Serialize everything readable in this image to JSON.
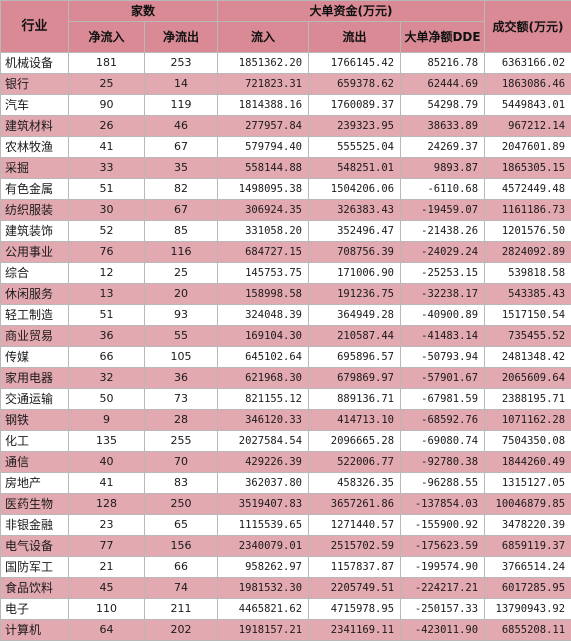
{
  "header": {
    "industry": "行业",
    "count_group": "家数",
    "net_inflow_count": "净流入",
    "net_outflow_count": "净流出",
    "big_order_group": "大单资金(万元)",
    "inflow": "流入",
    "outflow": "流出",
    "big_net_dde": "大单净额DDE",
    "turnover": "成交额(万元)"
  },
  "rows": [
    {
      "name": "机械设备",
      "in_n": "181",
      "out_n": "253",
      "inflow": "1851362.20",
      "outflow": "1766145.42",
      "net": "85216.78",
      "turnover": "6363166.02"
    },
    {
      "name": "银行",
      "in_n": "25",
      "out_n": "14",
      "inflow": "721823.31",
      "outflow": "659378.62",
      "net": "62444.69",
      "turnover": "1863086.46"
    },
    {
      "name": "汽车",
      "in_n": "90",
      "out_n": "119",
      "inflow": "1814388.16",
      "outflow": "1760089.37",
      "net": "54298.79",
      "turnover": "5449843.01"
    },
    {
      "name": "建筑材料",
      "in_n": "26",
      "out_n": "46",
      "inflow": "277957.84",
      "outflow": "239323.95",
      "net": "38633.89",
      "turnover": "967212.14"
    },
    {
      "name": "农林牧渔",
      "in_n": "41",
      "out_n": "67",
      "inflow": "579794.40",
      "outflow": "555525.04",
      "net": "24269.37",
      "turnover": "2047601.89"
    },
    {
      "name": "采掘",
      "in_n": "33",
      "out_n": "35",
      "inflow": "558144.88",
      "outflow": "548251.01",
      "net": "9893.87",
      "turnover": "1865305.15"
    },
    {
      "name": "有色金属",
      "in_n": "51",
      "out_n": "82",
      "inflow": "1498095.38",
      "outflow": "1504206.06",
      "net": "-6110.68",
      "turnover": "4572449.48"
    },
    {
      "name": "纺织服装",
      "in_n": "30",
      "out_n": "67",
      "inflow": "306924.35",
      "outflow": "326383.43",
      "net": "-19459.07",
      "turnover": "1161186.73"
    },
    {
      "name": "建筑装饰",
      "in_n": "52",
      "out_n": "85",
      "inflow": "331058.20",
      "outflow": "352496.47",
      "net": "-21438.26",
      "turnover": "1201576.50"
    },
    {
      "name": "公用事业",
      "in_n": "76",
      "out_n": "116",
      "inflow": "684727.15",
      "outflow": "708756.39",
      "net": "-24029.24",
      "turnover": "2824092.89"
    },
    {
      "name": "综合",
      "in_n": "12",
      "out_n": "25",
      "inflow": "145753.75",
      "outflow": "171006.90",
      "net": "-25253.15",
      "turnover": "539818.58"
    },
    {
      "name": "休闲服务",
      "in_n": "13",
      "out_n": "20",
      "inflow": "158998.58",
      "outflow": "191236.75",
      "net": "-32238.17",
      "turnover": "543385.43"
    },
    {
      "name": "轻工制造",
      "in_n": "51",
      "out_n": "93",
      "inflow": "324048.39",
      "outflow": "364949.28",
      "net": "-40900.89",
      "turnover": "1517150.54"
    },
    {
      "name": "商业贸易",
      "in_n": "36",
      "out_n": "55",
      "inflow": "169104.30",
      "outflow": "210587.44",
      "net": "-41483.14",
      "turnover": "735455.52"
    },
    {
      "name": "传媒",
      "in_n": "66",
      "out_n": "105",
      "inflow": "645102.64",
      "outflow": "695896.57",
      "net": "-50793.94",
      "turnover": "2481348.42"
    },
    {
      "name": "家用电器",
      "in_n": "32",
      "out_n": "36",
      "inflow": "621968.30",
      "outflow": "679869.97",
      "net": "-57901.67",
      "turnover": "2065609.64"
    },
    {
      "name": "交通运输",
      "in_n": "50",
      "out_n": "73",
      "inflow": "821155.12",
      "outflow": "889136.71",
      "net": "-67981.59",
      "turnover": "2388195.71"
    },
    {
      "name": "钢铁",
      "in_n": "9",
      "out_n": "28",
      "inflow": "346120.33",
      "outflow": "414713.10",
      "net": "-68592.76",
      "turnover": "1071162.28"
    },
    {
      "name": "化工",
      "in_n": "135",
      "out_n": "255",
      "inflow": "2027584.54",
      "outflow": "2096665.28",
      "net": "-69080.74",
      "turnover": "7504350.08"
    },
    {
      "name": "通信",
      "in_n": "40",
      "out_n": "70",
      "inflow": "429226.39",
      "outflow": "522006.77",
      "net": "-92780.38",
      "turnover": "1844260.49"
    },
    {
      "name": "房地产",
      "in_n": "41",
      "out_n": "83",
      "inflow": "362037.80",
      "outflow": "458326.35",
      "net": "-96288.55",
      "turnover": "1315127.05"
    },
    {
      "name": "医药生物",
      "in_n": "128",
      "out_n": "250",
      "inflow": "3519407.83",
      "outflow": "3657261.86",
      "net": "-137854.03",
      "turnover": "10046879.85"
    },
    {
      "name": "非银金融",
      "in_n": "23",
      "out_n": "65",
      "inflow": "1115539.65",
      "outflow": "1271440.57",
      "net": "-155900.92",
      "turnover": "3478220.39"
    },
    {
      "name": "电气设备",
      "in_n": "77",
      "out_n": "156",
      "inflow": "2340079.01",
      "outflow": "2515702.59",
      "net": "-175623.59",
      "turnover": "6859119.37"
    },
    {
      "name": "国防军工",
      "in_n": "21",
      "out_n": "66",
      "inflow": "958262.97",
      "outflow": "1157837.87",
      "net": "-199574.90",
      "turnover": "3766514.24"
    },
    {
      "name": "食品饮料",
      "in_n": "45",
      "out_n": "74",
      "inflow": "1981532.30",
      "outflow": "2205749.51",
      "net": "-224217.21",
      "turnover": "6017285.95"
    },
    {
      "name": "电子",
      "in_n": "110",
      "out_n": "211",
      "inflow": "4465821.62",
      "outflow": "4715978.95",
      "net": "-250157.33",
      "turnover": "13790943.92"
    },
    {
      "name": "计算机",
      "in_n": "64",
      "out_n": "202",
      "inflow": "1918157.21",
      "outflow": "2341169.11",
      "net": "-423011.90",
      "turnover": "6855208.11"
    }
  ]
}
